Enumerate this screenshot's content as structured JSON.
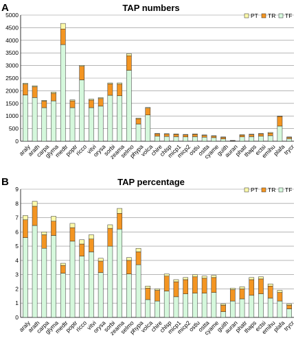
{
  "colors": {
    "TF": "#d5f8dc",
    "TR": "#f39522",
    "PT": "#fbf9aa",
    "edge": "#2d2d2d",
    "grid": "#8a8a8a",
    "plot_bg": "#ffffff"
  },
  "chart_data": [
    {
      "panel_letter": "A",
      "type": "bar",
      "stacked": true,
      "title": "TAP numbers",
      "xlabel": "",
      "ylabel": "",
      "ylim": [
        0,
        5000
      ],
      "yticks": [
        0,
        500,
        1000,
        1500,
        2000,
        2500,
        3000,
        3500,
        4000,
        4500,
        5000
      ],
      "grid": true,
      "legend_position": "top-right",
      "categories": [
        "araly",
        "arath",
        "carpa",
        "glyma",
        "medtr",
        "poptr",
        "ricco",
        "vitvi",
        "orysa",
        "sorbi",
        "zeama",
        "selmo",
        "phypa",
        "volca",
        "chire",
        "chlsp",
        "micp1",
        "micp2",
        "ostlu",
        "ostta",
        "cyame",
        "guith",
        "auran",
        "phatr",
        "thaps",
        "ectsi",
        "emihu",
        "plafa",
        "trycr"
      ],
      "series": [
        {
          "name": "TF",
          "values": [
            1830,
            1730,
            1330,
            1600,
            3830,
            1330,
            2430,
            1330,
            1390,
            1820,
            1800,
            2810,
            680,
            1040,
            200,
            190,
            180,
            170,
            180,
            160,
            140,
            90,
            10,
            170,
            180,
            200,
            220,
            600,
            100
          ]
        },
        {
          "name": "TR",
          "values": [
            430,
            430,
            260,
            300,
            620,
            270,
            540,
            300,
            300,
            450,
            460,
            580,
            210,
            270,
            90,
            90,
            90,
            80,
            90,
            70,
            60,
            60,
            15,
            70,
            80,
            90,
            100,
            380,
            50
          ]
        },
        {
          "name": "PT",
          "values": [
            40,
            40,
            30,
            50,
            220,
            40,
            40,
            40,
            40,
            40,
            50,
            80,
            30,
            30,
            20,
            20,
            20,
            20,
            20,
            20,
            20,
            20,
            5,
            20,
            20,
            20,
            30,
            20,
            20
          ]
        }
      ]
    },
    {
      "panel_letter": "B",
      "type": "bar",
      "stacked": true,
      "title": "TAP percentage",
      "xlabel": "",
      "ylabel": "",
      "ylim": [
        0,
        9
      ],
      "yticks": [
        0,
        1,
        2,
        3,
        4,
        5,
        6,
        7,
        8,
        9
      ],
      "grid": true,
      "legend_position": "top-right",
      "categories": [
        "araly",
        "arath",
        "carpa",
        "glyma",
        "medtr",
        "poptr",
        "ricco",
        "vitvi",
        "orysa",
        "sorbi",
        "zeama",
        "selmo",
        "phypa",
        "volca",
        "chire",
        "chlsp",
        "micp1",
        "micp2",
        "ostlu",
        "ostta",
        "cyame",
        "guith",
        "auran",
        "phatr",
        "thaps",
        "ectsi",
        "emihu",
        "plafa",
        "trycr"
      ],
      "series": [
        {
          "name": "TF",
          "values": [
            5.6,
            6.45,
            4.85,
            5.75,
            3.1,
            5.35,
            4.3,
            4.6,
            3.15,
            5.0,
            6.2,
            3.05,
            3.7,
            1.25,
            1.15,
            1.85,
            1.45,
            1.65,
            1.7,
            1.7,
            1.75,
            0.4,
            1.15,
            1.3,
            1.55,
            1.65,
            1.35,
            1.15,
            0.6
          ]
        },
        {
          "name": "TR",
          "values": [
            1.25,
            1.35,
            0.95,
            1.0,
            0.55,
            0.95,
            0.85,
            0.9,
            0.8,
            1.25,
            1.1,
            0.95,
            0.9,
            0.8,
            0.75,
            1.05,
            1.05,
            1.0,
            1.15,
            1.05,
            1.05,
            0.45,
            0.8,
            0.7,
            1.1,
            1.05,
            0.85,
            0.6,
            0.25
          ]
        },
        {
          "name": "PT",
          "values": [
            0.3,
            0.35,
            0.2,
            0.35,
            0.15,
            0.3,
            0.3,
            0.3,
            0.2,
            0.25,
            0.35,
            0.2,
            0.25,
            0.15,
            0.1,
            0.15,
            0.15,
            0.15,
            0.15,
            0.15,
            0.15,
            0.1,
            0.1,
            0.15,
            0.15,
            0.15,
            0.15,
            0.15,
            0.1
          ]
        }
      ]
    }
  ]
}
